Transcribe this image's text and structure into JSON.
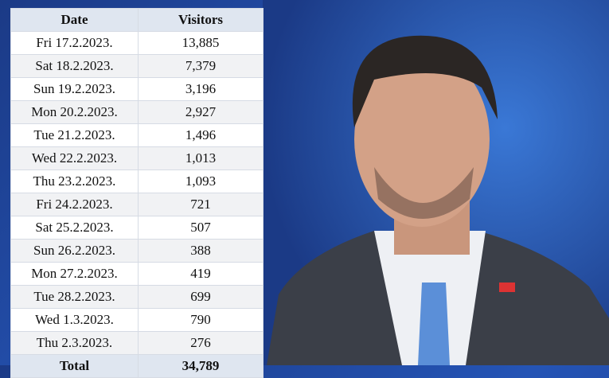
{
  "table": {
    "header": [
      "Date",
      "Visitors"
    ],
    "rows": [
      [
        "Fri 17.2.2023.",
        "13,885"
      ],
      [
        "Sat 18.2.2023.",
        "7,379"
      ],
      [
        "Sun 19.2.2023.",
        "3,196"
      ],
      [
        "Mon 20.2.2023.",
        "2,927"
      ],
      [
        "Tue 21.2.2023.",
        "1,496"
      ],
      [
        "Wed 22.2.2023.",
        "1,013"
      ],
      [
        "Thu 23.2.2023.",
        "1,093"
      ],
      [
        "Fri 24.2.2023.",
        "721"
      ],
      [
        "Sat 25.2.2023.",
        "507"
      ],
      [
        "Sun 26.2.2023.",
        "388"
      ],
      [
        "Mon 27.2.2023.",
        "419"
      ],
      [
        "Tue 28.2.2023.",
        "699"
      ],
      [
        "Wed 1.3.2023.",
        "790"
      ],
      [
        "Thu 2.3.2023.",
        "276"
      ]
    ],
    "total": [
      "Total",
      "34,789"
    ]
  }
}
